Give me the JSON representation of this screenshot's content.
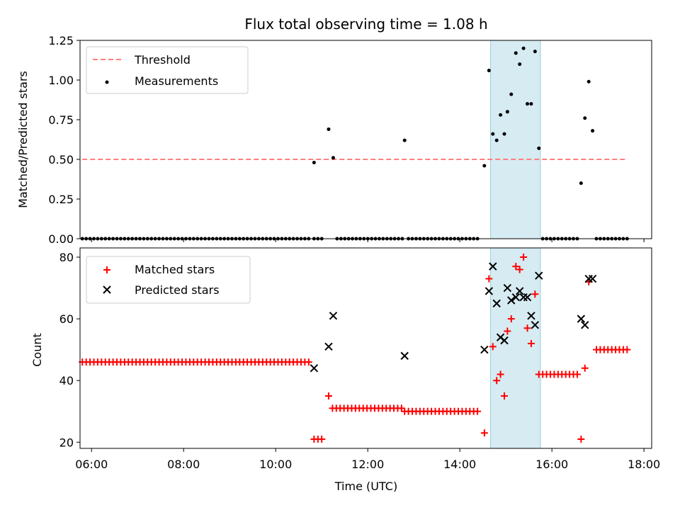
{
  "chart_data": [
    {
      "type": "scatter",
      "panel": "top",
      "title": "Flux total observing time = 1.08 h",
      "xlabel": "",
      "ylabel": "Matched/Predicted stars",
      "xlim": [
        "05:45",
        "18:10"
      ],
      "ylim": [
        0,
        1.25
      ],
      "yticks": [
        "0.00",
        "0.25",
        "0.50",
        "0.75",
        "1.00",
        "1.25"
      ],
      "xticks": [
        "06:00",
        "08:00",
        "10:00",
        "12:00",
        "14:00",
        "16:00",
        "18:00"
      ],
      "highlight_span": [
        "14:40",
        "15:45"
      ],
      "legend": {
        "placement": "upper-left",
        "entries": [
          "Threshold",
          "Measurements"
        ]
      },
      "threshold": {
        "name": "Threshold",
        "y": 0.5,
        "x_range": [
          "05:48",
          "17:38"
        ],
        "color": "#ff7f7f",
        "style": "dashed"
      },
      "series": [
        {
          "name": "Measurements",
          "color": "#000000",
          "points": [
            [
              "10:50",
              0.48
            ],
            [
              "11:09",
              0.69
            ],
            [
              "11:15",
              0.51
            ],
            [
              "12:48",
              0.62
            ],
            [
              "14:32",
              0.46
            ],
            [
              "14:38",
              1.06
            ],
            [
              "14:43",
              0.66
            ],
            [
              "14:48",
              0.62
            ],
            [
              "14:53",
              0.78
            ],
            [
              "14:58",
              0.66
            ],
            [
              "15:02",
              0.8
            ],
            [
              "15:07",
              0.91
            ],
            [
              "15:13",
              1.17
            ],
            [
              "15:18",
              1.1
            ],
            [
              "15:23",
              1.2
            ],
            [
              "15:28",
              0.85
            ],
            [
              "15:33",
              0.85
            ],
            [
              "15:38",
              1.18
            ],
            [
              "15:43",
              0.57
            ],
            [
              "16:38",
              0.35
            ],
            [
              "16:43",
              0.76
            ],
            [
              "16:48",
              0.99
            ],
            [
              "16:53",
              0.68
            ]
          ],
          "zero_points": {
            "value": 0.0,
            "ranges": [
              [
                "05:48",
                "10:45",
                5
              ],
              [
                "10:50",
                "11:00",
                5
              ],
              [
                "11:20",
                "12:45",
                5
              ],
              [
                "12:53",
                "14:27",
                5
              ],
              [
                "15:48",
                "16:33",
                5
              ],
              [
                "16:58",
                "17:38",
                5
              ]
            ]
          }
        }
      ]
    },
    {
      "type": "scatter",
      "panel": "bottom",
      "title": "",
      "xlabel": "Time (UTC)",
      "ylabel": "Count",
      "xlim": [
        "05:45",
        "18:10"
      ],
      "ylim": [
        18,
        83
      ],
      "yticks": [
        "20",
        "40",
        "60",
        "80"
      ],
      "xticks": [
        "06:00",
        "08:00",
        "10:00",
        "12:00",
        "14:00",
        "16:00",
        "18:00"
      ],
      "highlight_span": [
        "14:40",
        "15:45"
      ],
      "legend": {
        "placement": "upper-left",
        "entries": [
          "Matched stars",
          "Predicted stars"
        ]
      },
      "series": [
        {
          "name": "Matched stars",
          "color": "#ff0000",
          "marker": "plus",
          "points": [
            [
              "14:32",
              23
            ],
            [
              "14:38",
              73
            ],
            [
              "14:43",
              51
            ],
            [
              "14:48",
              40
            ],
            [
              "14:53",
              42
            ],
            [
              "14:58",
              35
            ],
            [
              "15:02",
              56
            ],
            [
              "15:07",
              60
            ],
            [
              "15:13",
              77
            ],
            [
              "15:18",
              76
            ],
            [
              "15:23",
              80
            ],
            [
              "15:28",
              57
            ],
            [
              "15:33",
              52
            ],
            [
              "15:38",
              68
            ],
            [
              "16:38",
              21
            ],
            [
              "16:43",
              44
            ],
            [
              "16:48",
              72
            ],
            [
              "11:09",
              35
            ]
          ],
          "runs": [
            [
              "05:48",
              "10:45",
              46
            ],
            [
              "10:50",
              "11:00",
              21
            ],
            [
              "11:14",
              "12:45",
              31
            ],
            [
              "12:48",
              "14:27",
              30
            ],
            [
              "15:43",
              "16:33",
              42
            ],
            [
              "16:58",
              "17:38",
              50
            ]
          ]
        },
        {
          "name": "Predicted stars",
          "color": "#000000",
          "marker": "x",
          "points": [
            [
              "10:50",
              44
            ],
            [
              "11:09",
              51
            ],
            [
              "11:15",
              61
            ],
            [
              "12:48",
              48
            ],
            [
              "14:32",
              50
            ],
            [
              "14:38",
              69
            ],
            [
              "14:43",
              77
            ],
            [
              "14:48",
              65
            ],
            [
              "14:53",
              54
            ],
            [
              "14:58",
              53
            ],
            [
              "15:02",
              70
            ],
            [
              "15:07",
              66
            ],
            [
              "15:13",
              67
            ],
            [
              "15:18",
              69
            ],
            [
              "15:23",
              67
            ],
            [
              "15:28",
              67
            ],
            [
              "15:33",
              61
            ],
            [
              "15:38",
              58
            ],
            [
              "15:43",
              74
            ],
            [
              "16:38",
              60
            ],
            [
              "16:43",
              58
            ],
            [
              "16:48",
              73
            ],
            [
              "16:53",
              73
            ]
          ]
        }
      ]
    }
  ]
}
